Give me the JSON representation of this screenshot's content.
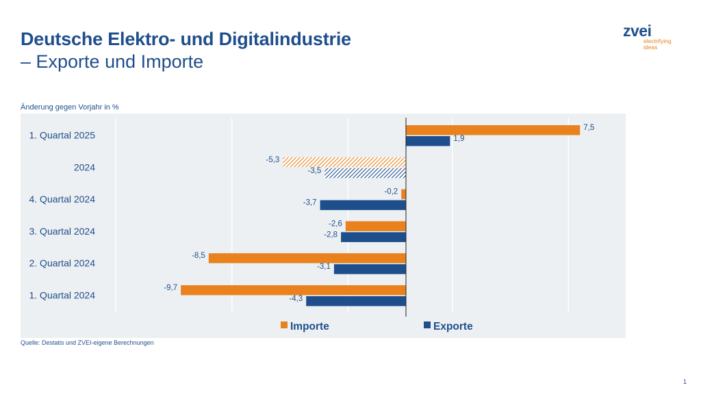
{
  "title": {
    "line1": "Deutsche Elektro- und Digitalindustrie",
    "line2": "– Exporte und Importe"
  },
  "logo": {
    "word": "zvei",
    "tagline": "electrifying ideas"
  },
  "unit_label": "Änderung gegen Vorjahr in %",
  "source": "Quelle: Destatis und ZVEI-eigene Berechnungen",
  "page_number": "1",
  "colors": {
    "imports": "#e9821e",
    "exports": "#1f4e8c",
    "plot_bg": "#ecf0f3"
  },
  "chart_data": {
    "type": "bar",
    "orientation": "horizontal",
    "categories": [
      "1. Quartal 2025",
      "2024",
      "4. Quartal 2024",
      "3. Quartal 2024",
      "2. Quartal 2024",
      "1. Quartal 2024"
    ],
    "categories_hatched": [
      "2024"
    ],
    "series": [
      {
        "name": "Importe",
        "values": [
          7.5,
          -5.3,
          -0.2,
          -2.6,
          -8.5,
          -9.7
        ],
        "labels": [
          "7,5",
          "-5,3",
          "-0,2",
          "-2,6",
          "-8,5",
          "-9,7"
        ]
      },
      {
        "name": "Exporte",
        "values": [
          1.9,
          -3.5,
          -3.7,
          -2.8,
          -3.1,
          -4.3
        ],
        "labels": [
          "1,9",
          "-3,5",
          "-3,7",
          "-2,8",
          "-3,1",
          "-4,3"
        ]
      }
    ],
    "xlim": [
      -13,
      9.5
    ],
    "gridlines": [
      -12.5,
      -7.5,
      -2.5,
      2.0,
      7.0
    ],
    "grid": true,
    "legend": "bottom"
  }
}
